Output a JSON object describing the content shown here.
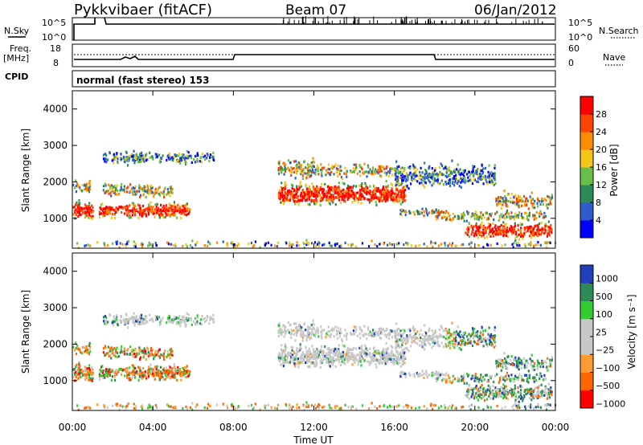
{
  "header": {
    "station": "Pykkvibaer (fitACF)",
    "beam": "Beam 07",
    "date": "06/Jan/2012"
  },
  "panels": {
    "nsky": {
      "label": "N.Sky",
      "right_label": "N.Search",
      "left_ticks": [
        "10^5",
        "10^0"
      ],
      "right_ticks": [
        "10^5",
        "10^0"
      ]
    },
    "freq": {
      "label_line1": "Freq.",
      "label_line2": "[MHz]",
      "right_label": "Nave",
      "left_ticks": [
        "18",
        "8"
      ],
      "right_ticks": [
        "60",
        "0"
      ]
    },
    "cpid": {
      "label": "CPID",
      "text": "normal (fast stereo) 153"
    }
  },
  "colors": {
    "power": [
      "#0000ff",
      "#2e5bd0",
      "#2e8b57",
      "#6abf4b",
      "#f5c518",
      "#ff8c00",
      "#ff4500",
      "#ff0000"
    ],
    "velocity": [
      "#ff0000",
      "#ff6600",
      "#ff9933",
      "#c8c8c8",
      "#c8c8c8",
      "#33cc33",
      "#2e8b57",
      "#1f3fbf"
    ]
  },
  "chart_data": [
    {
      "type": "heatmap",
      "name": "power",
      "ylabel": "Slant Range [km]",
      "y_ticks": [
        "1000",
        "2000",
        "3000",
        "4000"
      ],
      "ylim": [
        180,
        4500
      ],
      "colorbar_label": "Power [dB]",
      "colorbar_ticks": [
        "4",
        "8",
        "12",
        "16",
        "20",
        "24",
        "28"
      ],
      "colorbar_range": [
        0,
        32
      ]
    },
    {
      "type": "heatmap",
      "name": "velocity",
      "ylabel": "Slant Range [km]",
      "y_ticks": [
        "1000",
        "2000",
        "3000",
        "4000"
      ],
      "ylim": [
        180,
        4500
      ],
      "colorbar_label": "Velocity [m s⁻¹]",
      "colorbar_ticks": [
        "1000",
        "500",
        "100",
        "25",
        "−25",
        "−100",
        "−500",
        "−1000"
      ]
    }
  ],
  "x_axis": {
    "label": "Time UT",
    "ticks": [
      "00:00",
      "04:00",
      "08:00",
      "12:00",
      "16:00",
      "20:00",
      "00:00"
    ],
    "range_hours": [
      0,
      24
    ]
  }
}
